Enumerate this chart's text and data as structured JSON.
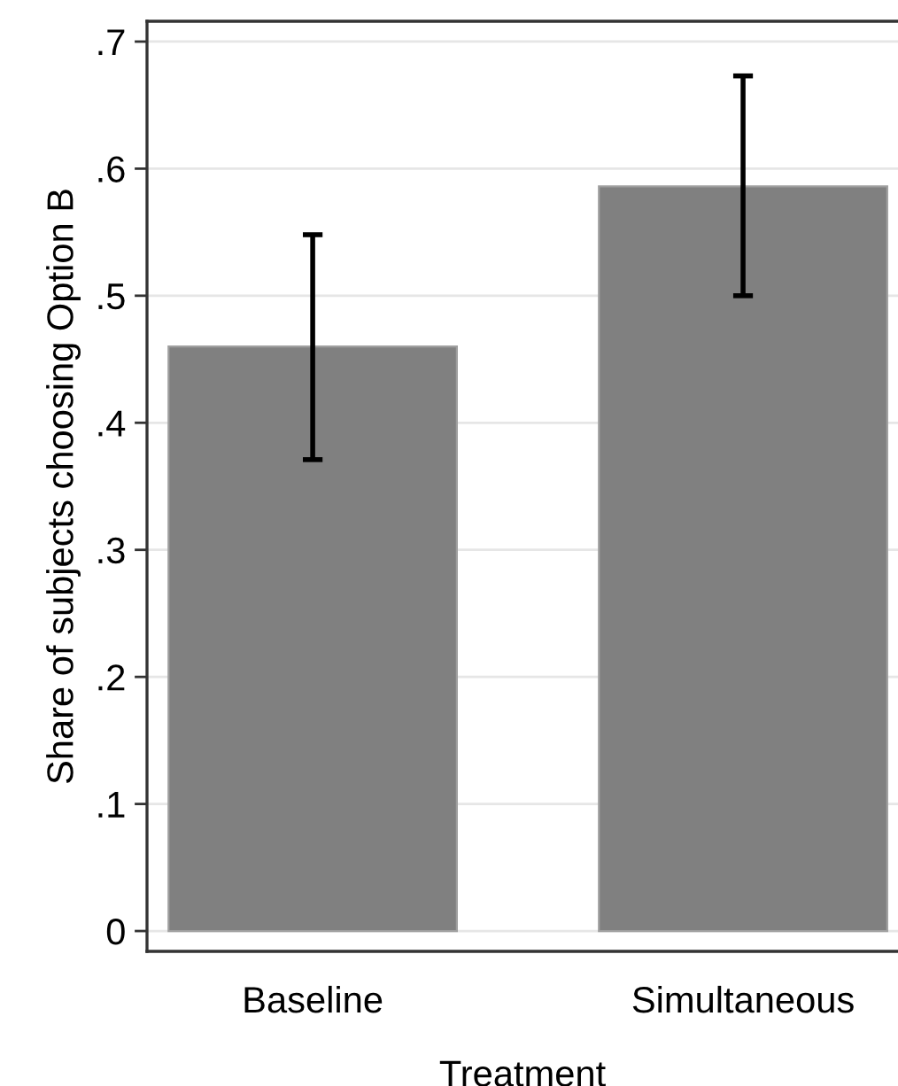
{
  "chart_data": {
    "type": "bar",
    "xlabel": "Treatment",
    "ylabel": "Share of subjects choosing Option B",
    "categories": [
      "Baseline",
      "Simultaneous"
    ],
    "series": [
      {
        "color": "#808080",
        "values": [
          0.46,
          0.586
        ],
        "errors": [
          [
            0.371,
            0.548
          ],
          [
            0.5,
            0.673
          ]
        ]
      }
    ],
    "ylim": [
      -0.016,
      0.716
    ],
    "yticks": [
      {
        "value": 0,
        "label": "0"
      },
      {
        "value": 0.1,
        "label": ".1"
      },
      {
        "value": 0.2,
        "label": ".2"
      },
      {
        "value": 0.3,
        "label": ".3"
      },
      {
        "value": 0.4,
        "label": ".4"
      },
      {
        "value": 0.5,
        "label": ".5"
      },
      {
        "value": 0.6,
        "label": ".6"
      },
      {
        "value": 0.7,
        "label": ".7"
      }
    ],
    "grid": "y"
  }
}
